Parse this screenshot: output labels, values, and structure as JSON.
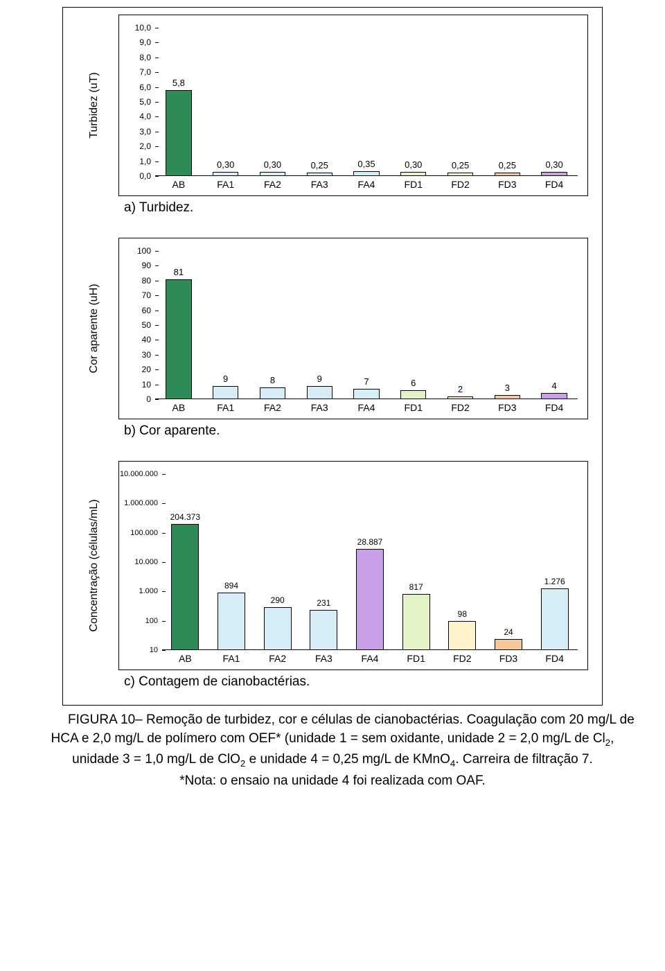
{
  "categories": [
    "AB",
    "FA1",
    "FA2",
    "FA3",
    "FA4",
    "FD1",
    "FD2",
    "FD3",
    "FD4"
  ],
  "colors": {
    "ab": "#2e8b57",
    "blue": "#d6edf5",
    "green": "#e3f2c7",
    "yellow": "#fff3cc",
    "orange": "#f5c799",
    "purple": "#c9a0e8",
    "border": "#000000",
    "bg": "#ffffff"
  },
  "chartA": {
    "type": "bar",
    "ylabel": "Turbidez (uT)",
    "title": "a) Turbidez.",
    "ylim": [
      0.0,
      10.0
    ],
    "ytick_step": 1.0,
    "ytick_format": "dec1comma",
    "label_fontsize": 12,
    "bar_width": 0.55,
    "values": [
      5.8,
      0.3,
      0.3,
      0.25,
      0.35,
      0.3,
      0.25,
      0.25,
      0.3
    ],
    "labels": [
      "5,8",
      "0,30",
      "0,30",
      "0,25",
      "0,35",
      "0,30",
      "0,25",
      "0,25",
      "0,30"
    ],
    "bar_colors": [
      "ab",
      "blue",
      "blue",
      "blue",
      "blue",
      "green",
      "yellow",
      "orange",
      "purple"
    ]
  },
  "chartB": {
    "type": "bar",
    "ylabel": "Cor aparente (uH)",
    "title": "b) Cor aparente.",
    "ylim": [
      0,
      100
    ],
    "ytick_step": 10,
    "ytick_format": "int",
    "label_fontsize": 12,
    "bar_width": 0.55,
    "values": [
      81,
      9,
      8,
      9,
      7,
      6,
      2,
      3,
      4
    ],
    "labels": [
      "81",
      "9",
      "8",
      "9",
      "7",
      "6",
      "2",
      "3",
      "4"
    ],
    "bar_colors": [
      "ab",
      "blue",
      "blue",
      "blue",
      "blue",
      "green",
      "yellow",
      "orange",
      "purple"
    ]
  },
  "chartC": {
    "type": "bar-log",
    "ylabel": "Concentração (células/mL)",
    "title": "c) Contagem de cianobactérias.",
    "ylim": [
      10,
      10000000
    ],
    "yticks": [
      10,
      100,
      1000,
      10000,
      100000,
      1000000,
      10000000
    ],
    "ytick_labels": [
      "10",
      "100",
      "1.000",
      "10.000",
      "100.000",
      "1.000.000",
      "10.000.000"
    ],
    "label_fontsize": 11,
    "bar_width": 0.6,
    "values": [
      204373,
      894,
      290,
      231,
      28887,
      817,
      98,
      24,
      1276
    ],
    "labels": [
      "204.373",
      "894",
      "290",
      "231",
      "28.887",
      "817",
      "98",
      "24",
      "1.276"
    ],
    "bar_colors": [
      "ab",
      "blue",
      "blue",
      "blue",
      "purple",
      "green",
      "yellow",
      "orange",
      "blue"
    ]
  },
  "captionPieces": {
    "fig_prefix": "FIGURA 10– ",
    "line1a": "Remoção de turbidez, cor e células de cianobactérias. Coagulação com 20 mg/L de",
    "line2a": "HCA e 2,0 mg/L de polímero com OEF* (unidade 1 = sem oxidante, unidade 2 = 2,0 mg/L de Cl",
    "line2b": ",",
    "line3a": "unidade 3 = 1,0 mg/L de ClO",
    "line3b": " e unidade 4 = 0,25 mg/L de KMnO",
    "line3c": ". Carreira de filtração 7.",
    "line4": "*Nota: o ensaio na unidade 4 foi realizada com OAF."
  }
}
